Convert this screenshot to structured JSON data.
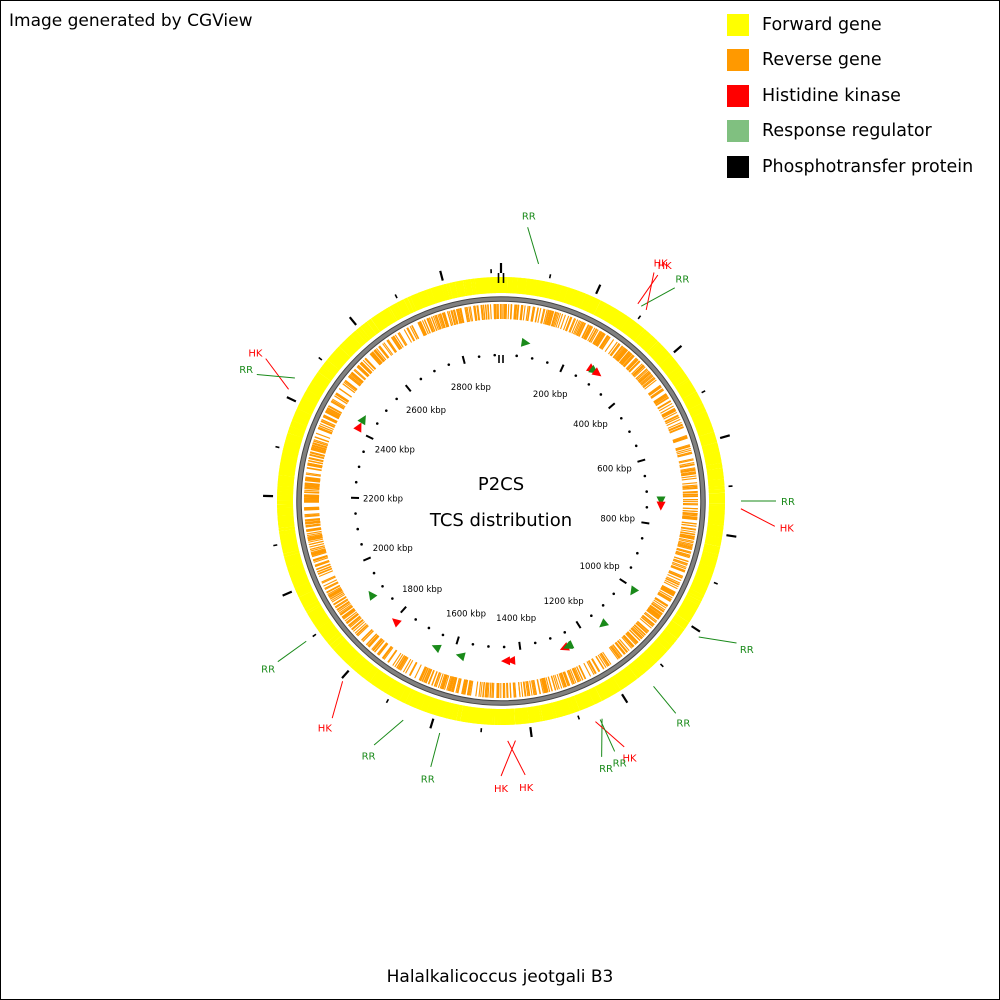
{
  "credit": "Image generated by CGView",
  "organism": "Halalkalicoccus jeotgali B3",
  "center_title": "P2CS",
  "center_subtitle": "TCS distribution",
  "legend": [
    {
      "label": "Forward gene",
      "color": "#ffff00"
    },
    {
      "label": "Reverse gene",
      "color": "#ff9900"
    },
    {
      "label": "Histidine kinase",
      "color": "#ff0000"
    },
    {
      "label": "Response regulator",
      "color": "#80c080"
    },
    {
      "label": "Phosphotransfer protein",
      "color": "#000000"
    }
  ],
  "colors": {
    "forward": "#ffff00",
    "reverse": "#ff9900",
    "hk": "#ff0000",
    "rr": "#1a8a1a",
    "backbone": "#808080",
    "tick": "#000000"
  },
  "genome_length_kbp": 2920,
  "scale_labels": [
    "2800 kbp",
    "200 kbp",
    "400 kbp",
    "600 kbp",
    "800 kbp",
    "1000 kbp",
    "1200 kbp",
    "1400 kbp",
    "1600 kbp",
    "1800 kbp",
    "2000 kbp",
    "2200 kbp",
    "2400 kbp",
    "2600 kbp"
  ],
  "scale_label_positions_kbp": [
    2800,
    200,
    400,
    600,
    800,
    1000,
    1200,
    1400,
    1600,
    1800,
    2000,
    2200,
    2400,
    2600
  ],
  "features": [
    {
      "type": "RR",
      "position_kbp": 73
    },
    {
      "type": "HK",
      "position_kbp": 282
    },
    {
      "type": "RR",
      "position_kbp": 290
    },
    {
      "type": "HK",
      "position_kbp": 302
    },
    {
      "type": "RR",
      "position_kbp": 730
    },
    {
      "type": "HK",
      "position_kbp": 745
    },
    {
      "type": "RR",
      "position_kbp": 1010
    },
    {
      "type": "RR",
      "position_kbp": 1140
    },
    {
      "type": "RR",
      "position_kbp": 1258
    },
    {
      "type": "HK",
      "position_kbp": 1272
    },
    {
      "type": "RR",
      "position_kbp": 1262
    },
    {
      "type": "HK",
      "position_kbp": 1432
    },
    {
      "type": "HK",
      "position_kbp": 1447
    },
    {
      "type": "RR",
      "position_kbp": 1580
    },
    {
      "type": "RR",
      "position_kbp": 1655
    },
    {
      "type": "HK",
      "position_kbp": 1795
    },
    {
      "type": "RR",
      "position_kbp": 1900
    },
    {
      "type": "HK",
      "position_kbp": 2415
    },
    {
      "type": "RR",
      "position_kbp": 2440
    }
  ]
}
